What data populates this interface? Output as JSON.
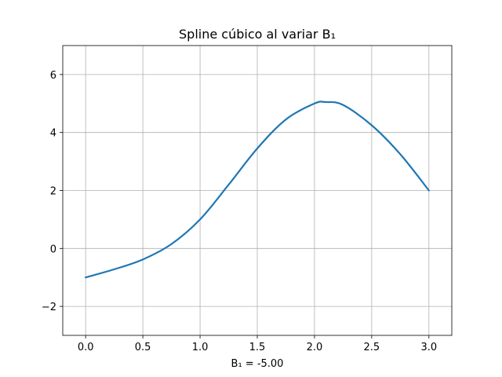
{
  "chart_data": {
    "type": "line",
    "title": "Spline cúbico al variar B₁",
    "xlabel": "B₁ = -5.00",
    "ylabel": "",
    "xlim": [
      -0.2,
      3.2
    ],
    "ylim": [
      -3,
      7
    ],
    "xticks": [
      0.0,
      0.5,
      1.0,
      1.5,
      2.0,
      2.5,
      3.0
    ],
    "xtick_labels": [
      "0.0",
      "0.5",
      "1.0",
      "1.5",
      "2.0",
      "2.5",
      "3.0"
    ],
    "yticks": [
      -2,
      0,
      2,
      4,
      6
    ],
    "ytick_labels": [
      "−2",
      "0",
      "2",
      "4",
      "6"
    ],
    "grid": true,
    "series": [
      {
        "color": "#1f77b4",
        "x": [
          0.0,
          0.25,
          0.5,
          0.75,
          1.0,
          1.25,
          1.5,
          1.75,
          2.0,
          2.1,
          2.25,
          2.5,
          2.75,
          3.0
        ],
        "y": [
          -1.0,
          -0.72,
          -0.38,
          0.15,
          1.0,
          2.2,
          3.45,
          4.45,
          5.0,
          5.05,
          4.95,
          4.25,
          3.25,
          2.0
        ]
      }
    ]
  }
}
